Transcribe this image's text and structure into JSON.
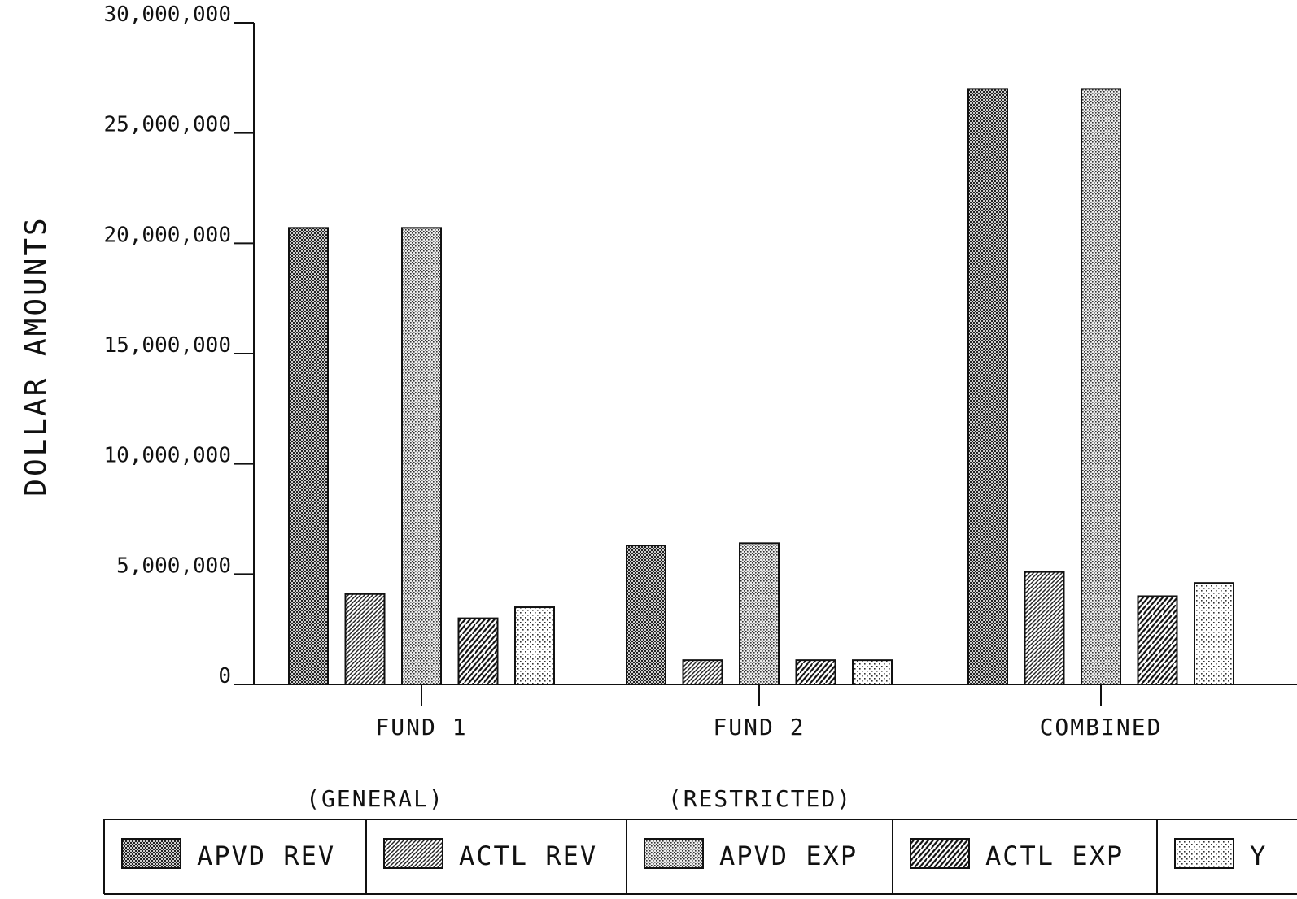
{
  "chart_data": {
    "type": "bar",
    "title": "",
    "xlabel": "",
    "ylabel": "DOLLAR AMOUNTS",
    "ylim": [
      0,
      30000000
    ],
    "yticks": [
      {
        "value": 0,
        "label": "0"
      },
      {
        "value": 5000000,
        "label": "5,000,000"
      },
      {
        "value": 10000000,
        "label": "10,000,000"
      },
      {
        "value": 15000000,
        "label": "15,000,000"
      },
      {
        "value": 20000000,
        "label": "20,000,000"
      },
      {
        "value": 25000000,
        "label": "25,000,000"
      },
      {
        "value": 30000000,
        "label": "30,000,000"
      }
    ],
    "categories": [
      "FUND 1",
      "FUND 2",
      "COMBINED"
    ],
    "category_notes": [
      "(GENERAL)",
      "(RESTRICTED)",
      ""
    ],
    "grid": false,
    "legend_position": "bottom",
    "series": [
      {
        "name": "APVD REV",
        "pattern": "dense-crosshatch",
        "values": [
          20700000,
          6300000,
          27000000
        ]
      },
      {
        "name": "ACTL REV",
        "pattern": "diagonal-fine",
        "values": [
          4100000,
          1100000,
          5100000
        ]
      },
      {
        "name": "APVD EXP",
        "pattern": "dense-dots",
        "values": [
          20700000,
          6400000,
          27000000
        ]
      },
      {
        "name": "ACTL EXP",
        "pattern": "diagonal-bold",
        "values": [
          3000000,
          1100000,
          4000000
        ]
      },
      {
        "name": "Y",
        "pattern": "sparse-dots",
        "values": [
          3500000,
          1100000,
          4600000
        ]
      }
    ]
  }
}
